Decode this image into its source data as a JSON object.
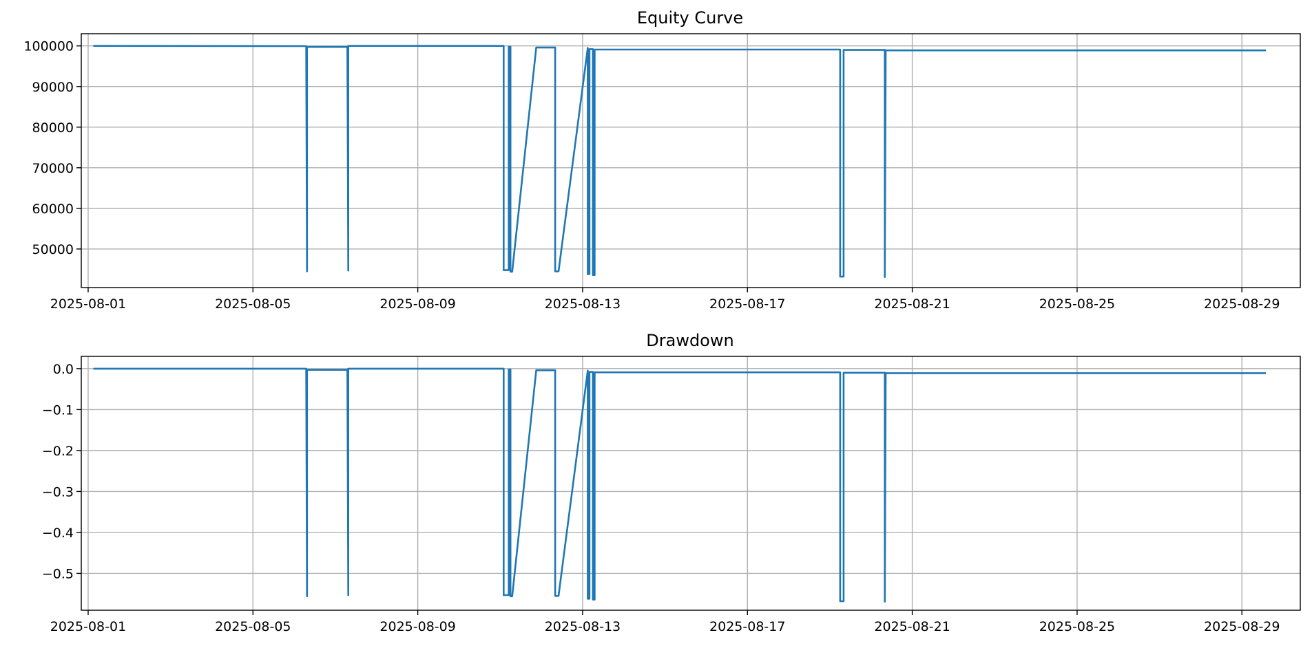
{
  "chart_data": [
    {
      "type": "line",
      "title": "Equity Curve",
      "xlabel": "",
      "ylabel": "",
      "x_range": [
        "2025-07-31T20:00",
        "2025-08-30T10:00"
      ],
      "ylim": [
        40500,
        103000
      ],
      "grid": true,
      "x_ticks": [
        "2025-08-01",
        "2025-08-05",
        "2025-08-09",
        "2025-08-13",
        "2025-08-17",
        "2025-08-21",
        "2025-08-25",
        "2025-08-29"
      ],
      "y_ticks": [
        {
          "value": 50000,
          "label": "50000"
        },
        {
          "value": 60000,
          "label": "60000"
        },
        {
          "value": 70000,
          "label": "70000"
        },
        {
          "value": 80000,
          "label": "80000"
        },
        {
          "value": 90000,
          "label": "90000"
        },
        {
          "value": 100000,
          "label": "100000"
        }
      ],
      "series": [
        {
          "points": [
            [
              "2025-08-01T03:00",
              100000
            ],
            [
              "2025-08-06T07:00",
              99950
            ],
            [
              "2025-08-06T07:00",
              99950
            ],
            [
              "2025-08-06T07:30",
              44500
            ],
            [
              "2025-08-06T07:30",
              99750
            ],
            [
              "2025-08-07T07:00",
              99750
            ],
            [
              "2025-08-07T07:30",
              44700
            ],
            [
              "2025-08-07T07:30",
              100000
            ],
            [
              "2025-08-11T02:00",
              100000
            ],
            [
              "2025-08-11T02:00",
              44800
            ],
            [
              "2025-08-11T05:00",
              44800
            ],
            [
              "2025-08-11T05:00",
              99800
            ],
            [
              "2025-08-11T06:00",
              99800
            ],
            [
              "2025-08-11T06:00",
              44400
            ],
            [
              "2025-08-11T07:00",
              44400
            ],
            [
              "2025-08-11T21:00",
              99600
            ],
            [
              "2025-08-12T08:00",
              99600
            ],
            [
              "2025-08-12T08:00",
              44500
            ],
            [
              "2025-08-12T10:00",
              44500
            ],
            [
              "2025-08-13T03:00",
              99500
            ],
            [
              "2025-08-13T03:00",
              43800
            ],
            [
              "2025-08-13T04:00",
              43800
            ],
            [
              "2025-08-13T04:00",
              99200
            ],
            [
              "2025-08-13T06:00",
              99200
            ],
            [
              "2025-08-13T06:00",
              43600
            ],
            [
              "2025-08-13T07:00",
              43600
            ],
            [
              "2025-08-13T07:00",
              99100
            ],
            [
              "2025-08-19T06:00",
              99100
            ],
            [
              "2025-08-19T06:00",
              43200
            ],
            [
              "2025-08-19T08:00",
              43200
            ],
            [
              "2025-08-19T08:00",
              99000
            ],
            [
              "2025-08-20T08:00",
              99000
            ],
            [
              "2025-08-20T08:00",
              43100
            ],
            [
              "2025-08-20T08:30",
              98900
            ],
            [
              "2025-08-29T14:00",
              98900
            ]
          ]
        }
      ]
    },
    {
      "type": "line",
      "title": "Drawdown",
      "xlabel": "",
      "ylabel": "",
      "x_range": [
        "2025-07-31T20:00",
        "2025-08-30T10:00"
      ],
      "ylim": [
        -0.59,
        0.03
      ],
      "grid": true,
      "x_ticks": [
        "2025-08-01",
        "2025-08-05",
        "2025-08-09",
        "2025-08-13",
        "2025-08-17",
        "2025-08-21",
        "2025-08-25",
        "2025-08-29"
      ],
      "y_ticks": [
        {
          "value": 0.0,
          "label": "0.0"
        },
        {
          "value": -0.1,
          "label": "−0.1"
        },
        {
          "value": -0.2,
          "label": "−0.2"
        },
        {
          "value": -0.3,
          "label": "−0.3"
        },
        {
          "value": -0.4,
          "label": "−0.4"
        },
        {
          "value": -0.5,
          "label": "−0.5"
        }
      ],
      "series": [
        {
          "points": [
            [
              "2025-08-01T03:00",
              0.0
            ],
            [
              "2025-08-06T07:00",
              0.0
            ],
            [
              "2025-08-06T07:00",
              0.0
            ],
            [
              "2025-08-06T07:30",
              -0.556
            ],
            [
              "2025-08-06T07:30",
              -0.003
            ],
            [
              "2025-08-07T07:00",
              -0.003
            ],
            [
              "2025-08-07T07:30",
              -0.553
            ],
            [
              "2025-08-07T07:30",
              0.0
            ],
            [
              "2025-08-11T02:00",
              0.0
            ],
            [
              "2025-08-11T02:00",
              -0.553
            ],
            [
              "2025-08-11T05:00",
              -0.553
            ],
            [
              "2025-08-11T05:00",
              -0.002
            ],
            [
              "2025-08-11T06:00",
              -0.002
            ],
            [
              "2025-08-11T06:00",
              -0.556
            ],
            [
              "2025-08-11T07:00",
              -0.556
            ],
            [
              "2025-08-11T21:00",
              -0.004
            ],
            [
              "2025-08-12T08:00",
              -0.004
            ],
            [
              "2025-08-12T08:00",
              -0.555
            ],
            [
              "2025-08-12T10:00",
              -0.555
            ],
            [
              "2025-08-13T03:00",
              -0.005
            ],
            [
              "2025-08-13T03:00",
              -0.562
            ],
            [
              "2025-08-13T04:00",
              -0.562
            ],
            [
              "2025-08-13T04:00",
              -0.008
            ],
            [
              "2025-08-13T06:00",
              -0.008
            ],
            [
              "2025-08-13T06:00",
              -0.564
            ],
            [
              "2025-08-13T07:00",
              -0.564
            ],
            [
              "2025-08-13T07:00",
              -0.009
            ],
            [
              "2025-08-19T06:00",
              -0.009
            ],
            [
              "2025-08-19T06:00",
              -0.568
            ],
            [
              "2025-08-19T08:00",
              -0.568
            ],
            [
              "2025-08-19T08:00",
              -0.01
            ],
            [
              "2025-08-20T08:00",
              -0.01
            ],
            [
              "2025-08-20T08:00",
              -0.569
            ],
            [
              "2025-08-20T08:30",
              -0.011
            ],
            [
              "2025-08-29T14:00",
              -0.011
            ]
          ]
        }
      ]
    }
  ]
}
